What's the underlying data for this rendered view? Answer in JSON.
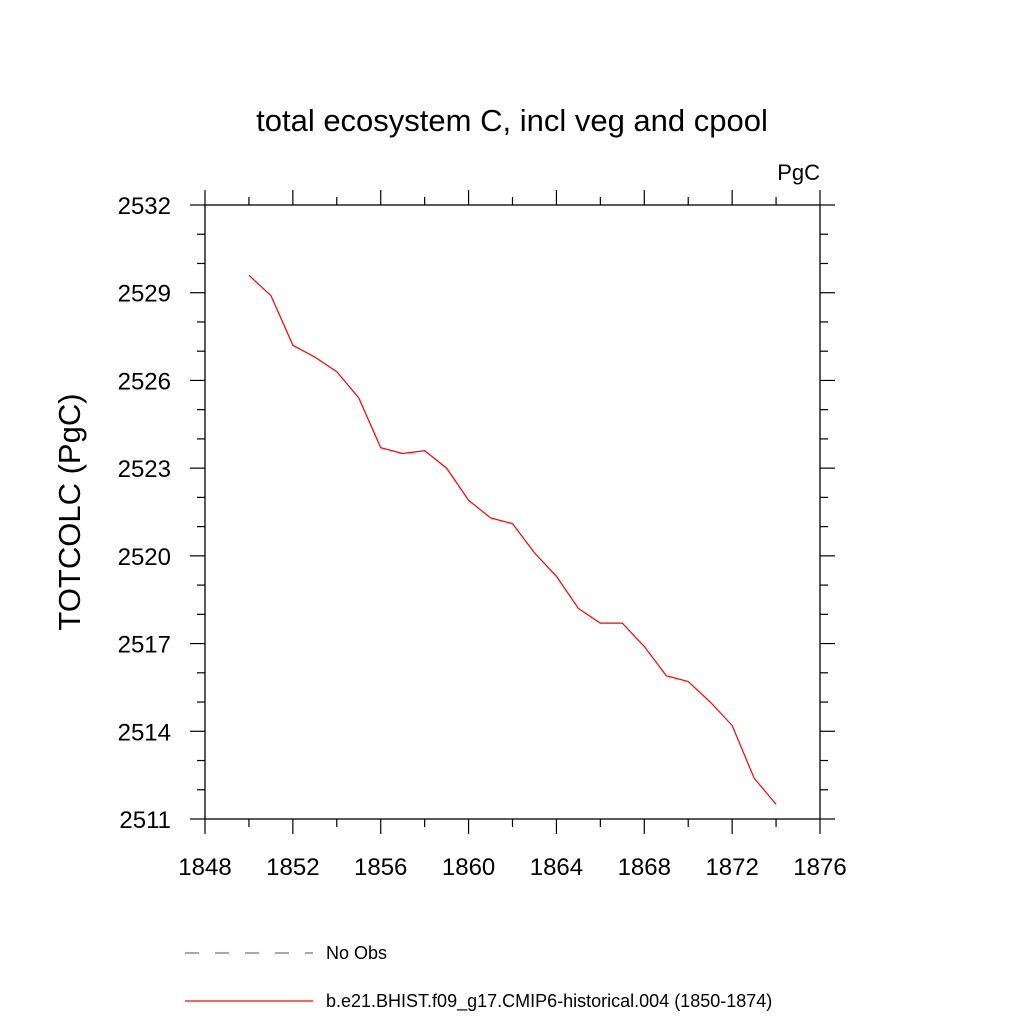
{
  "chart_data": {
    "type": "line",
    "title": "total ecosystem C, incl veg and cpool",
    "units_label": "PgC",
    "ylabel": "TOTCOLC  (PgC)",
    "xlabel": "",
    "xlim": [
      1848,
      1876
    ],
    "ylim": [
      2511,
      2532
    ],
    "x_ticks": [
      1848,
      1852,
      1856,
      1860,
      1864,
      1868,
      1872,
      1876
    ],
    "y_ticks": [
      2511,
      2514,
      2517,
      2520,
      2523,
      2526,
      2529,
      2532
    ],
    "x_minor_step": 2,
    "y_minor_step": 1,
    "grid": false,
    "legend_position": "bottom",
    "series": [
      {
        "name": "No Obs",
        "color": "#6a6ac8",
        "style": "dashed",
        "x": [],
        "y": []
      },
      {
        "name": "b.e21.BHIST.f09_g17.CMIP6-historical.004 (1850-1874)",
        "color": "#ff0000",
        "style": "solid",
        "x": [
          1850,
          1851,
          1852,
          1853,
          1854,
          1855,
          1856,
          1857,
          1858,
          1859,
          1860,
          1861,
          1862,
          1863,
          1864,
          1865,
          1866,
          1867,
          1868,
          1869,
          1870,
          1871,
          1872,
          1873,
          1874
        ],
        "y": [
          2529.6,
          2528.9,
          2527.2,
          2526.8,
          2526.3,
          2525.4,
          2523.7,
          2523.5,
          2523.6,
          2523.0,
          2521.9,
          2521.3,
          2521.1,
          2520.1,
          2519.3,
          2518.2,
          2517.7,
          2517.7,
          2516.9,
          2515.9,
          2515.7,
          2515.0,
          2514.2,
          2512.4,
          2511.5
        ]
      }
    ]
  }
}
